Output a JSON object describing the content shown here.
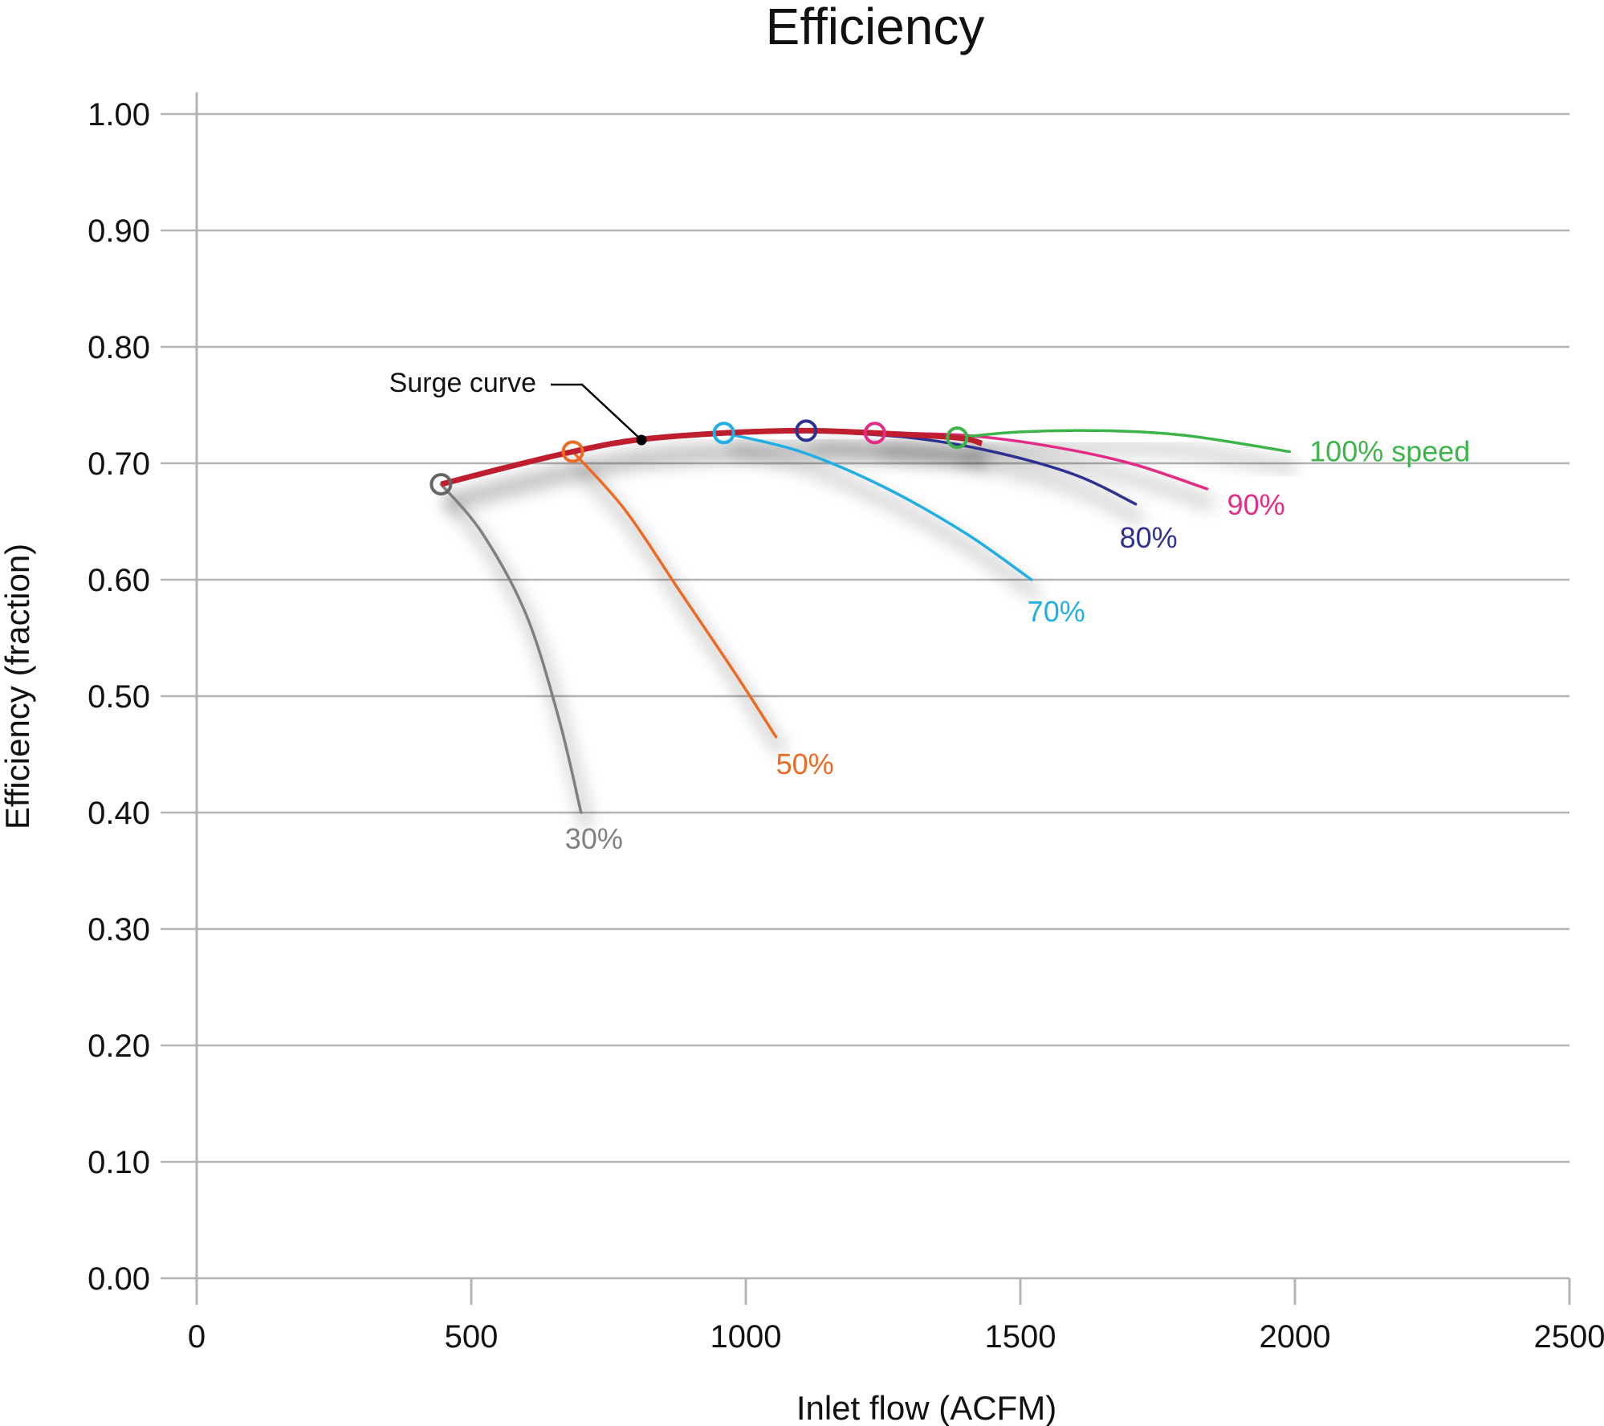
{
  "chart_data": {
    "type": "line",
    "title": "Efficiency",
    "xlabel": "Inlet flow (ACFM)",
    "ylabel": "Efficiency (fraction)",
    "xlim": [
      0,
      2500
    ],
    "ylim": [
      0.0,
      1.0
    ],
    "x_ticks": [
      "0",
      "500",
      "1000",
      "1500",
      "2000",
      "2500"
    ],
    "y_ticks": [
      "0.00",
      "0.10",
      "0.20",
      "0.30",
      "0.40",
      "0.50",
      "0.60",
      "0.70",
      "0.80",
      "0.90",
      "1.00"
    ],
    "grid": "horizontal",
    "series": [
      {
        "name": "30%",
        "color": "#808080",
        "points": [
          [
            445,
            0.682
          ],
          [
            520,
            0.64
          ],
          [
            600,
            0.57
          ],
          [
            660,
            0.48
          ],
          [
            700,
            0.4
          ]
        ]
      },
      {
        "name": "50%",
        "color": "#ee6a24",
        "points": [
          [
            685,
            0.71
          ],
          [
            780,
            0.66
          ],
          [
            880,
            0.59
          ],
          [
            980,
            0.52
          ],
          [
            1055,
            0.465
          ]
        ]
      },
      {
        "name": "70%",
        "color": "#20aee5",
        "points": [
          [
            960,
            0.726
          ],
          [
            1100,
            0.71
          ],
          [
            1250,
            0.68
          ],
          [
            1400,
            0.64
          ],
          [
            1520,
            0.6
          ]
        ]
      },
      {
        "name": "80%",
        "color": "#2e3192",
        "points": [
          [
            1110,
            0.728
          ],
          [
            1300,
            0.722
          ],
          [
            1450,
            0.71
          ],
          [
            1600,
            0.69
          ],
          [
            1710,
            0.665
          ]
        ]
      },
      {
        "name": "90%",
        "color": "#e22c86",
        "points": [
          [
            1235,
            0.726
          ],
          [
            1400,
            0.724
          ],
          [
            1550,
            0.715
          ],
          [
            1700,
            0.7
          ],
          [
            1840,
            0.678
          ]
        ]
      },
      {
        "name": "100% speed",
        "color": "#3cb449",
        "points": [
          [
            1385,
            0.722
          ],
          [
            1500,
            0.727
          ],
          [
            1650,
            0.728
          ],
          [
            1800,
            0.724
          ],
          [
            1990,
            0.71
          ]
        ]
      }
    ],
    "surge_curve": {
      "label": "Surge curve",
      "color": "#bf1e2e",
      "points": [
        [
          445,
          0.682
        ],
        [
          560,
          0.696
        ],
        [
          685,
          0.71
        ],
        [
          800,
          0.72
        ],
        [
          960,
          0.726
        ],
        [
          1110,
          0.728
        ],
        [
          1235,
          0.726
        ],
        [
          1385,
          0.722
        ],
        [
          1430,
          0.717
        ]
      ]
    },
    "surge_points": [
      {
        "x": 445,
        "y": 0.682,
        "color": "#666666"
      },
      {
        "x": 685,
        "y": 0.71,
        "color": "#ee6a24"
      },
      {
        "x": 960,
        "y": 0.726,
        "color": "#20aee5"
      },
      {
        "x": 1110,
        "y": 0.728,
        "color": "#2e3192"
      },
      {
        "x": 1235,
        "y": 0.726,
        "color": "#e22c86"
      },
      {
        "x": 1385,
        "y": 0.722,
        "color": "#3cb449"
      }
    ],
    "annotation": {
      "text": "Surge curve",
      "x": 810,
      "y": 0.72
    }
  }
}
